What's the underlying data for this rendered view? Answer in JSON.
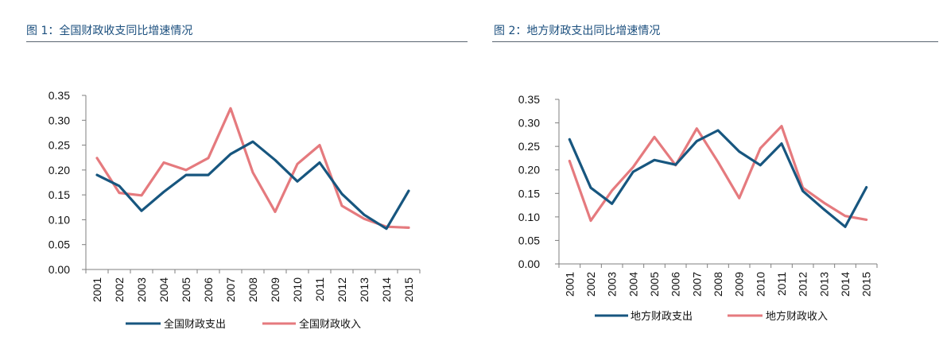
{
  "chart_data": [
    {
      "type": "line",
      "title": "图 1：全国财政收支同比增速情况",
      "xlabel": "",
      "ylabel": "",
      "ylim": [
        0,
        0.35
      ],
      "yticks": [
        "0.35",
        "0.30",
        "0.25",
        "0.20",
        "0.15",
        "0.10",
        "0.05",
        "0.00"
      ],
      "categories": [
        "2001",
        "2002",
        "2003",
        "2004",
        "2005",
        "2006",
        "2007",
        "2008",
        "2009",
        "2010",
        "2011",
        "2012",
        "2013",
        "2014",
        "2015"
      ],
      "series": [
        {
          "name": "全国财政支出",
          "color": "#17567f",
          "values": [
            0.19,
            0.168,
            0.118,
            0.156,
            0.19,
            0.19,
            0.232,
            0.257,
            0.22,
            0.177,
            0.215,
            0.152,
            0.11,
            0.082,
            0.158
          ]
        },
        {
          "name": "全国财政收入",
          "color": "#e57a7e",
          "values": [
            0.224,
            0.154,
            0.149,
            0.215,
            0.2,
            0.224,
            0.324,
            0.195,
            0.116,
            0.212,
            0.25,
            0.128,
            0.102,
            0.086,
            0.084
          ]
        }
      ],
      "grid": false,
      "legend": "bottom"
    },
    {
      "type": "line",
      "title": "图 2：地方财政支出同比增速情况",
      "xlabel": "",
      "ylabel": "",
      "ylim": [
        0,
        0.35
      ],
      "yticks": [
        "0.35",
        "0.30",
        "0.25",
        "0.20",
        "0.15",
        "0.10",
        "0.05",
        "0.00"
      ],
      "categories": [
        "2001",
        "2002",
        "2003",
        "2004",
        "2005",
        "2006",
        "2007",
        "2008",
        "2009",
        "2010",
        "2011",
        "2012",
        "2013",
        "2014",
        "2015"
      ],
      "series": [
        {
          "name": "地方财政支出",
          "color": "#17567f",
          "values": [
            0.265,
            0.162,
            0.128,
            0.196,
            0.221,
            0.211,
            0.261,
            0.284,
            0.239,
            0.21,
            0.256,
            0.155,
            0.116,
            0.079,
            0.163
          ]
        },
        {
          "name": "地方财政收入",
          "color": "#e57a7e",
          "values": [
            0.219,
            0.092,
            0.156,
            0.206,
            0.27,
            0.21,
            0.288,
            0.217,
            0.14,
            0.246,
            0.293,
            0.162,
            0.13,
            0.102,
            0.094
          ]
        }
      ],
      "grid": false,
      "legend": "bottom"
    }
  ]
}
